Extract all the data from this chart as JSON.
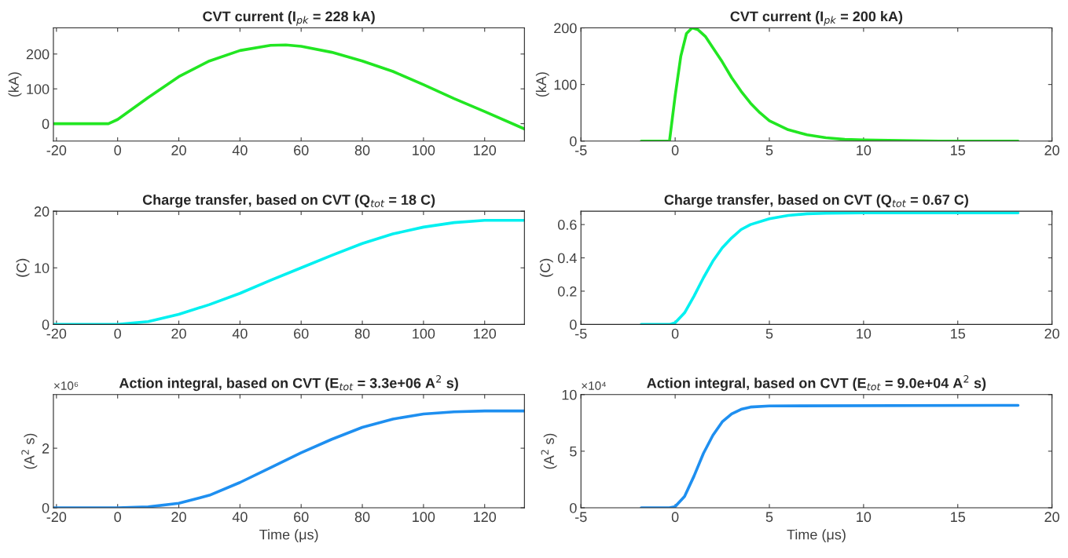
{
  "chart_data": [
    {
      "type": "line",
      "title": "CVT current (I$_{pk}$ = 228 kA)",
      "ylabel": "(kA)",
      "xlim": [
        -21,
        133
      ],
      "ylim": [
        -50,
        275
      ],
      "xticks": [
        -20,
        0,
        20,
        40,
        60,
        80,
        100,
        120
      ],
      "yticks": [
        0,
        100,
        200
      ],
      "grid": false,
      "legend": false,
      "series": [
        {
          "color": "#22e622",
          "x": [
            -21,
            -3,
            0,
            10,
            20,
            30,
            40,
            50,
            55,
            60,
            70,
            80,
            90,
            100,
            110,
            120,
            133
          ],
          "values": [
            0,
            0,
            12,
            75,
            135,
            180,
            210,
            225,
            226,
            222,
            205,
            180,
            150,
            112,
            72,
            35,
            -15
          ]
        }
      ]
    },
    {
      "type": "line",
      "title": "CVT current (I$_{pk}$ = 200 kA)",
      "ylabel": "(kA)",
      "xlim": [
        -5,
        20
      ],
      "ylim": [
        0,
        200
      ],
      "xticks": [
        -5,
        0,
        5,
        10,
        15,
        20
      ],
      "yticks": [
        0,
        100,
        200
      ],
      "grid": false,
      "legend": false,
      "series": [
        {
          "color": "#22e622",
          "x": [
            -1.8,
            -0.3,
            0,
            0.3,
            0.6,
            0.9,
            1.2,
            1.6,
            2,
            2.5,
            3,
            3.5,
            4,
            4.5,
            5,
            6,
            7,
            8,
            9,
            10,
            12,
            14,
            18.2
          ],
          "values": [
            0,
            0,
            80,
            150,
            190,
            200,
            197,
            185,
            165,
            140,
            112,
            88,
            67,
            50,
            36,
            20,
            11,
            6,
            3,
            2,
            1,
            0,
            0
          ]
        }
      ]
    },
    {
      "type": "line",
      "title": "Charge transfer, based on CVT (Q$_{tot}$ = 18 C)",
      "ylabel": "(C)",
      "xlim": [
        -21,
        133
      ],
      "ylim": [
        0,
        20
      ],
      "xticks": [
        -20,
        0,
        20,
        40,
        60,
        80,
        100,
        120
      ],
      "yticks": [
        0,
        10,
        20
      ],
      "grid": false,
      "legend": false,
      "series": [
        {
          "color": "#00f0f0",
          "x": [
            -21,
            0,
            10,
            20,
            30,
            40,
            50,
            60,
            70,
            80,
            90,
            100,
            110,
            120,
            133
          ],
          "values": [
            0,
            0,
            0.5,
            1.8,
            3.5,
            5.5,
            7.8,
            10,
            12.2,
            14.3,
            16,
            17.2,
            18,
            18.4,
            18.4
          ]
        }
      ]
    },
    {
      "type": "line",
      "title": "Charge transfer, based on CVT (Q$_{tot}$ = 0.67 C)",
      "ylabel": "(C)",
      "xlim": [
        -5,
        20
      ],
      "ylim": [
        0,
        0.68
      ],
      "xticks": [
        -5,
        0,
        5,
        10,
        15,
        20
      ],
      "yticks": [
        0,
        0.2,
        0.4,
        0.6
      ],
      "grid": false,
      "legend": false,
      "series": [
        {
          "color": "#00f0f0",
          "x": [
            -1.8,
            -0.3,
            0,
            0.5,
            1,
            1.5,
            2,
            2.5,
            3,
            3.5,
            4,
            5,
            6,
            7,
            8,
            10,
            18.2
          ],
          "values": [
            0,
            0,
            0.01,
            0.07,
            0.17,
            0.28,
            0.38,
            0.46,
            0.52,
            0.57,
            0.6,
            0.635,
            0.655,
            0.665,
            0.668,
            0.67,
            0.67
          ]
        }
      ]
    },
    {
      "type": "line",
      "title": "Action integral, based on CVT (E$_{tot}$ = 3.3e+06 A$^{2}$ s)",
      "ylabel": "(A$^{2}$ s)",
      "xlabel": "Time (μs)",
      "xlim": [
        -21,
        133
      ],
      "ylim": [
        0,
        3.8
      ],
      "xticks": [
        -20,
        0,
        20,
        40,
        60,
        80,
        100,
        120
      ],
      "yticks": [
        0,
        2
      ],
      "grid": false,
      "legend": false,
      "annotations": [
        "×10⁶"
      ],
      "series": [
        {
          "color": "#1e8ff0",
          "x": [
            -21,
            0,
            10,
            20,
            30,
            40,
            50,
            60,
            70,
            80,
            90,
            100,
            110,
            120,
            133
          ],
          "values": [
            0,
            0,
            0.03,
            0.15,
            0.42,
            0.85,
            1.35,
            1.85,
            2.3,
            2.7,
            2.98,
            3.15,
            3.22,
            3.25,
            3.25
          ]
        }
      ]
    },
    {
      "type": "line",
      "title": "Action integral, based on CVT (E$_{tot}$ = 9.0e+04 A$^{2}$ s)",
      "ylabel": "(A$^{2}$ s)",
      "xlabel": "Time (μs)",
      "xlim": [
        -5,
        20
      ],
      "ylim": [
        0,
        10
      ],
      "xticks": [
        -5,
        0,
        5,
        10,
        15,
        20
      ],
      "yticks": [
        0,
        5,
        10
      ],
      "grid": false,
      "legend": false,
      "annotations": [
        "×10⁴"
      ],
      "series": [
        {
          "color": "#1e8ff0",
          "x": [
            -1.8,
            -0.3,
            0,
            0.5,
            1,
            1.5,
            2,
            2.5,
            3,
            3.5,
            4,
            5,
            18.2
          ],
          "values": [
            0,
            0,
            0.1,
            1,
            2.8,
            4.8,
            6.4,
            7.6,
            8.3,
            8.7,
            8.9,
            9,
            9.05
          ]
        }
      ]
    }
  ]
}
